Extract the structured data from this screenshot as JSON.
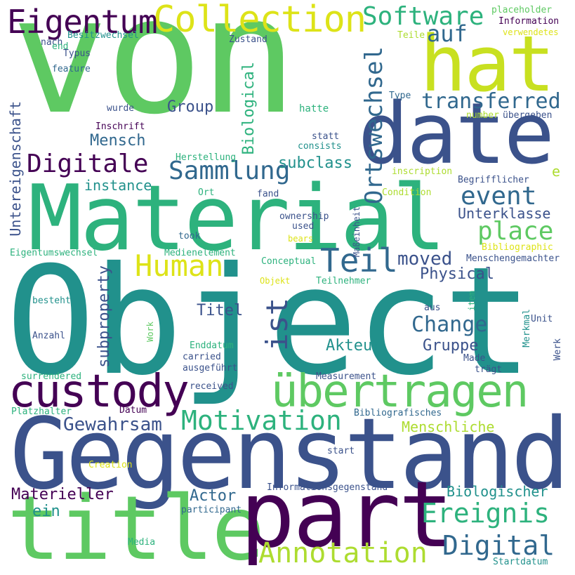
{
  "words": {
    "von": "von",
    "object": "Object",
    "gegenstand": "Gegenstand",
    "material": "Material",
    "title": "title",
    "part": "part",
    "date": "date",
    "hat": "hat",
    "uebertragen": "übertragen",
    "custody": "custody",
    "collection": "Collection",
    "eigentum": "Eigentum",
    "software": "Software",
    "auf": "auf",
    "ortswechsel": "Ortswechsel",
    "teil": "Teil",
    "ist": "ist",
    "human": "Human",
    "digitale": "Digitale",
    "sammlung": "Sammlung",
    "event": "event",
    "place": "place",
    "transferred": "transferred",
    "annotation": "Annotation",
    "digital": "Digital",
    "ereignis": "Ereignis",
    "motivation": "Motivation",
    "gewahrsam": "Gewahrsam",
    "change": "Change",
    "moved": "moved",
    "group": "Group",
    "biological": "Biological",
    "untereigenschaft": "Untereigenschaft",
    "mensch": "Mensch",
    "subclass": "subclass",
    "instance": "instance",
    "unterklasse": "Unterklasse",
    "physical": "Physical",
    "subproperty": "subproperty",
    "titel": "Titel",
    "akteur": "Akteur",
    "gruppe": "Gruppe",
    "menschliche": "Menschliche",
    "biologischer": "Biologischer",
    "materieller": "Materieller",
    "actor": "Actor",
    "ein": "ein",
    "e": "e",
    "placeholder": "placeholder",
    "information": "Information",
    "verwendetes": "verwendetes",
    "teile": "Teile",
    "besitzwechsel": "Besitzwechsel",
    "nach": "nach",
    "zustand": "Zustand",
    "end": "end",
    "typus": "Typus",
    "feature": "feature",
    "type": "Type",
    "hatte": "hatte",
    "number": "number",
    "uebergeben": "übergeben",
    "wurde": "wurde",
    "inschrift": "Inschrift",
    "statt": "statt",
    "consists": "consists",
    "herstellung": "Herstellung",
    "inscription": "inscription",
    "begrifflicher": "Begrifflicher",
    "ort": "Ort",
    "fand": "fand",
    "condition": "Condition",
    "masseinheit": "Maßeinheit",
    "ownership": "ownership",
    "used": "used",
    "took": "took",
    "bears": "bears",
    "bibliographic": "Bibliographic",
    "eigentumswechsel": "Eigentumswechsel",
    "medienelement": "Medienelement",
    "conceptual": "Conceptual",
    "menschengemachter": "Menschengemachter",
    "objekt": "Objekt",
    "teilnehmer": "Teilnehmer",
    "item": "item",
    "besteht": "besteht",
    "aus": "aus",
    "merkmal": "Merkmal",
    "unit": "Unit",
    "anzahl": "Anzahl",
    "work": "Work",
    "enddatum": "Enddatum",
    "carried": "carried",
    "ausgefuehrt": "ausgeführt",
    "made": "Made",
    "werk": "Werk",
    "traegt": "trägt",
    "surrendered": "surrendered",
    "received": "received",
    "measurement": "Measurement",
    "platzhalter": "Platzhalter",
    "datum": "Datum",
    "bibliografisches": "Bibliografisches",
    "start": "start",
    "creation": "Creation",
    "informationsgegenstand": "Informationsgegenstand",
    "participant": "participant",
    "media": "Media",
    "startdatum": "Startdatum"
  },
  "palette": {
    "dark_purple": "#440154",
    "indigo": "#3b528b",
    "slate_blue": "#31688e",
    "teal": "#21918c",
    "sea_green": "#2db27d",
    "green": "#5ec962",
    "lime": "#addc30",
    "yellow": "#dde318"
  }
}
